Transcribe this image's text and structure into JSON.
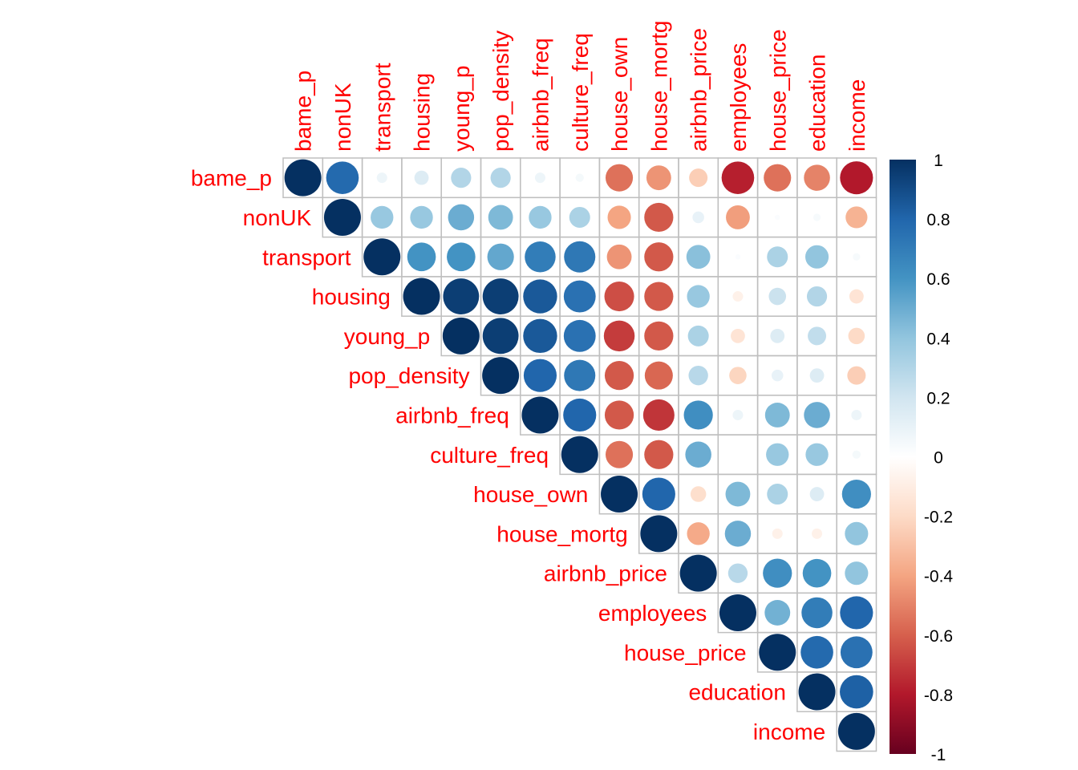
{
  "chart_data": {
    "type": "heatmap",
    "style": "corrplot-circle-upper",
    "variables": [
      "bame_p",
      "nonUK",
      "transport",
      "housing",
      "young_p",
      "pop_density",
      "airbnb_freq",
      "culture_freq",
      "house_own",
      "house_mortg",
      "airbnb_price",
      "employees",
      "house_price",
      "education",
      "income"
    ],
    "matrix": [
      [
        1,
        0.78,
        0.08,
        0.15,
        0.3,
        0.3,
        0.08,
        0.05,
        -0.55,
        -0.45,
        -0.25,
        -0.78,
        -0.55,
        -0.5,
        -0.8
      ],
      [
        0.78,
        1,
        0.38,
        0.38,
        0.5,
        0.45,
        0.38,
        0.32,
        -0.4,
        -0.62,
        0.1,
        -0.42,
        0.02,
        0.04,
        -0.35
      ],
      [
        0.08,
        0.38,
        1,
        0.6,
        0.6,
        0.52,
        0.7,
        0.72,
        -0.45,
        -0.62,
        0.42,
        0.02,
        0.32,
        0.4,
        0.04
      ],
      [
        0.15,
        0.38,
        0.6,
        1,
        0.95,
        0.95,
        0.85,
        0.75,
        -0.65,
        -0.62,
        0.38,
        -0.08,
        0.22,
        0.3,
        -0.15
      ],
      [
        0.3,
        0.5,
        0.6,
        0.95,
        1,
        0.95,
        0.85,
        0.75,
        -0.7,
        -0.62,
        0.32,
        -0.15,
        0.15,
        0.25,
        -0.2
      ],
      [
        0.3,
        0.45,
        0.52,
        0.95,
        0.95,
        1,
        0.8,
        0.72,
        -0.62,
        -0.58,
        0.28,
        -0.22,
        0.1,
        0.15,
        -0.25
      ],
      [
        0.08,
        0.38,
        0.7,
        0.85,
        0.85,
        0.8,
        1,
        0.8,
        -0.62,
        -0.72,
        0.62,
        0.08,
        0.45,
        0.5,
        0.08
      ],
      [
        0.05,
        0.32,
        0.72,
        0.75,
        0.75,
        0.72,
        0.8,
        1,
        -0.55,
        -0.62,
        0.5,
        0.0,
        0.38,
        0.38,
        0.05
      ],
      [
        -0.55,
        -0.4,
        -0.45,
        -0.65,
        -0.7,
        -0.62,
        -0.62,
        -0.55,
        1,
        0.8,
        -0.18,
        0.45,
        0.32,
        0.15,
        0.62
      ],
      [
        -0.45,
        -0.62,
        -0.62,
        -0.62,
        -0.62,
        -0.58,
        -0.72,
        -0.62,
        0.8,
        1,
        -0.38,
        0.5,
        -0.08,
        -0.08,
        0.4
      ],
      [
        -0.25,
        0.1,
        0.42,
        0.38,
        0.32,
        0.28,
        0.62,
        0.5,
        -0.18,
        -0.38,
        1,
        0.28,
        0.62,
        0.6,
        0.4
      ],
      [
        -0.78,
        -0.42,
        0.02,
        -0.08,
        -0.15,
        -0.22,
        0.08,
        0.0,
        0.45,
        0.5,
        0.28,
        1,
        0.48,
        0.7,
        0.8
      ],
      [
        -0.55,
        0.02,
        0.32,
        0.22,
        0.15,
        0.1,
        0.45,
        0.38,
        0.32,
        -0.08,
        0.62,
        0.48,
        1,
        0.78,
        0.75
      ],
      [
        -0.5,
        0.04,
        0.4,
        0.3,
        0.25,
        0.15,
        0.5,
        0.38,
        0.15,
        -0.08,
        0.6,
        0.7,
        0.78,
        1,
        0.82
      ],
      [
        -0.8,
        -0.35,
        0.04,
        -0.15,
        -0.2,
        -0.25,
        0.08,
        0.05,
        0.62,
        0.4,
        0.4,
        0.8,
        0.75,
        0.82,
        1
      ]
    ],
    "colorbar": {
      "range": [
        -1,
        1
      ],
      "ticks": [
        "1",
        "0.8",
        "0.6",
        "0.4",
        "0.2",
        "0",
        "-0.2",
        "-0.4",
        "-0.6",
        "-0.8",
        "-1"
      ],
      "colors": [
        "#67001F",
        "#B2182B",
        "#D6604D",
        "#F4A582",
        "#FDDBC7",
        "#FFFFFF",
        "#D1E5F0",
        "#92C5DE",
        "#4393C3",
        "#2166AC",
        "#053061"
      ]
    },
    "label_color": "#ff0000",
    "grid_color": "#bfbfbf",
    "grid": true,
    "legend_position": "right"
  }
}
